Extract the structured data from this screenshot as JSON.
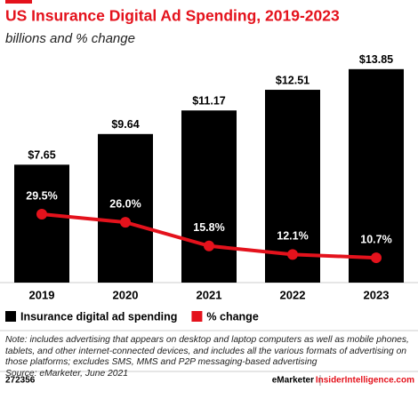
{
  "chart_data": {
    "type": "bar",
    "title": "US Insurance Digital Ad Spending, 2019-2023",
    "subtitle": "billions and % change",
    "categories": [
      "2019",
      "2020",
      "2021",
      "2022",
      "2023"
    ],
    "ylim": [
      0,
      14.3
    ],
    "y2lim": [
      0,
      95
    ],
    "series": [
      {
        "name": "Insurance digital ad spending",
        "type": "bar",
        "color": "#000000",
        "values": [
          7.65,
          9.64,
          11.17,
          12.51,
          13.85
        ],
        "value_labels": [
          "$7.65",
          "$9.64",
          "$11.17",
          "$12.51",
          "$13.85"
        ]
      },
      {
        "name": "% change",
        "type": "line",
        "axis": "y2",
        "color": "#e4121c",
        "values": [
          29.5,
          26.0,
          15.8,
          12.1,
          10.7
        ],
        "value_labels": [
          "29.5%",
          "26.0%",
          "15.8%",
          "12.1%",
          "10.7%"
        ]
      }
    ],
    "note": "Note: includes advertising that appears on desktop and laptop computers as well as mobile phones, tablets, and other internet-connected devices, and includes all the various formats of advertising on those platforms; excludes SMS, MMS and P2P messaging-based advertising",
    "source": "Source: eMarketer, June 2021",
    "footer": {
      "id": "272356",
      "brand": "eMarketer",
      "site": "InsiderIntelligence.com"
    }
  }
}
